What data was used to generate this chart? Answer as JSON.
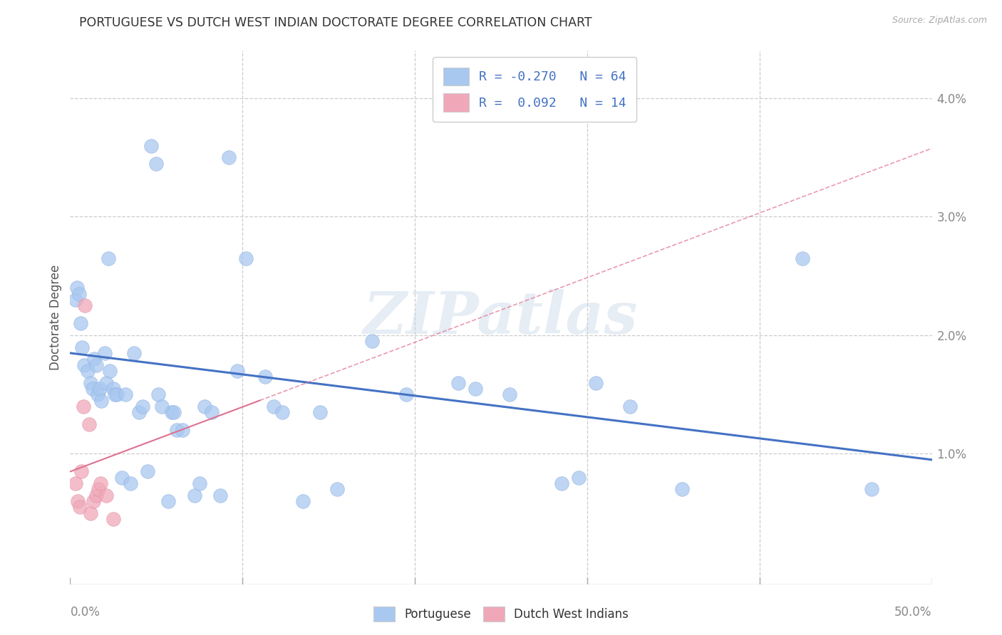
{
  "title": "PORTUGUESE VS DUTCH WEST INDIAN DOCTORATE DEGREE CORRELATION CHART",
  "source": "Source: ZipAtlas.com",
  "ylabel": "Doctorate Degree",
  "xlim": [
    0,
    50
  ],
  "ylim": [
    -0.1,
    4.4
  ],
  "ytick_vals": [
    1,
    2,
    3,
    4
  ],
  "ytick_labels": [
    "1.0%",
    "2.0%",
    "3.0%",
    "4.0%"
  ],
  "portuguese_points": [
    [
      0.3,
      2.3
    ],
    [
      0.4,
      2.4
    ],
    [
      0.5,
      2.35
    ],
    [
      0.6,
      2.1
    ],
    [
      0.7,
      1.9
    ],
    [
      0.8,
      1.75
    ],
    [
      1.0,
      1.7
    ],
    [
      1.2,
      1.6
    ],
    [
      1.3,
      1.55
    ],
    [
      1.4,
      1.8
    ],
    [
      1.5,
      1.75
    ],
    [
      1.6,
      1.5
    ],
    [
      1.7,
      1.55
    ],
    [
      1.8,
      1.45
    ],
    [
      2.0,
      1.85
    ],
    [
      2.1,
      1.6
    ],
    [
      2.2,
      2.65
    ],
    [
      2.3,
      1.7
    ],
    [
      2.5,
      1.55
    ],
    [
      2.6,
      1.5
    ],
    [
      2.7,
      1.5
    ],
    [
      3.0,
      0.8
    ],
    [
      3.2,
      1.5
    ],
    [
      3.5,
      0.75
    ],
    [
      3.7,
      1.85
    ],
    [
      4.0,
      1.35
    ],
    [
      4.2,
      1.4
    ],
    [
      4.5,
      0.85
    ],
    [
      4.7,
      3.6
    ],
    [
      5.0,
      3.45
    ],
    [
      5.1,
      1.5
    ],
    [
      5.3,
      1.4
    ],
    [
      5.7,
      0.6
    ],
    [
      5.9,
      1.35
    ],
    [
      6.0,
      1.35
    ],
    [
      6.2,
      1.2
    ],
    [
      6.5,
      1.2
    ],
    [
      7.2,
      0.65
    ],
    [
      7.5,
      0.75
    ],
    [
      7.8,
      1.4
    ],
    [
      8.2,
      1.35
    ],
    [
      8.7,
      0.65
    ],
    [
      9.2,
      3.5
    ],
    [
      9.7,
      1.7
    ],
    [
      10.2,
      2.65
    ],
    [
      11.3,
      1.65
    ],
    [
      11.8,
      1.4
    ],
    [
      12.3,
      1.35
    ],
    [
      13.5,
      0.6
    ],
    [
      14.5,
      1.35
    ],
    [
      15.5,
      0.7
    ],
    [
      17.5,
      1.95
    ],
    [
      19.5,
      1.5
    ],
    [
      22.5,
      1.6
    ],
    [
      23.5,
      1.55
    ],
    [
      25.5,
      1.5
    ],
    [
      28.5,
      0.75
    ],
    [
      29.5,
      0.8
    ],
    [
      30.5,
      1.6
    ],
    [
      32.5,
      1.4
    ],
    [
      35.5,
      0.7
    ],
    [
      42.5,
      2.65
    ],
    [
      46.5,
      0.7
    ]
  ],
  "dutch_points": [
    [
      0.3,
      0.75
    ],
    [
      0.45,
      0.6
    ],
    [
      0.55,
      0.55
    ],
    [
      0.65,
      0.85
    ],
    [
      0.75,
      1.4
    ],
    [
      0.85,
      2.25
    ],
    [
      1.1,
      1.25
    ],
    [
      1.2,
      0.5
    ],
    [
      1.35,
      0.6
    ],
    [
      1.5,
      0.65
    ],
    [
      1.65,
      0.7
    ],
    [
      1.75,
      0.75
    ],
    [
      2.1,
      0.65
    ],
    [
      2.5,
      0.45
    ]
  ],
  "portuguese_line_color": "#4472c4",
  "dutch_line_color": "#e07090",
  "portuguese_scatter_color": "#a8c8f0",
  "dutch_scatter_color": "#f0a8b8",
  "background_color": "#ffffff",
  "grid_color": "#cccccc",
  "watermark": "ZIPatlas",
  "watermark_color": "#c8d8e8",
  "pt_line_x": [
    0,
    50
  ],
  "pt_line_y": [
    1.85,
    0.95
  ],
  "du_line_x": [
    0,
    11
  ],
  "du_line_y": [
    0.85,
    1.45
  ]
}
